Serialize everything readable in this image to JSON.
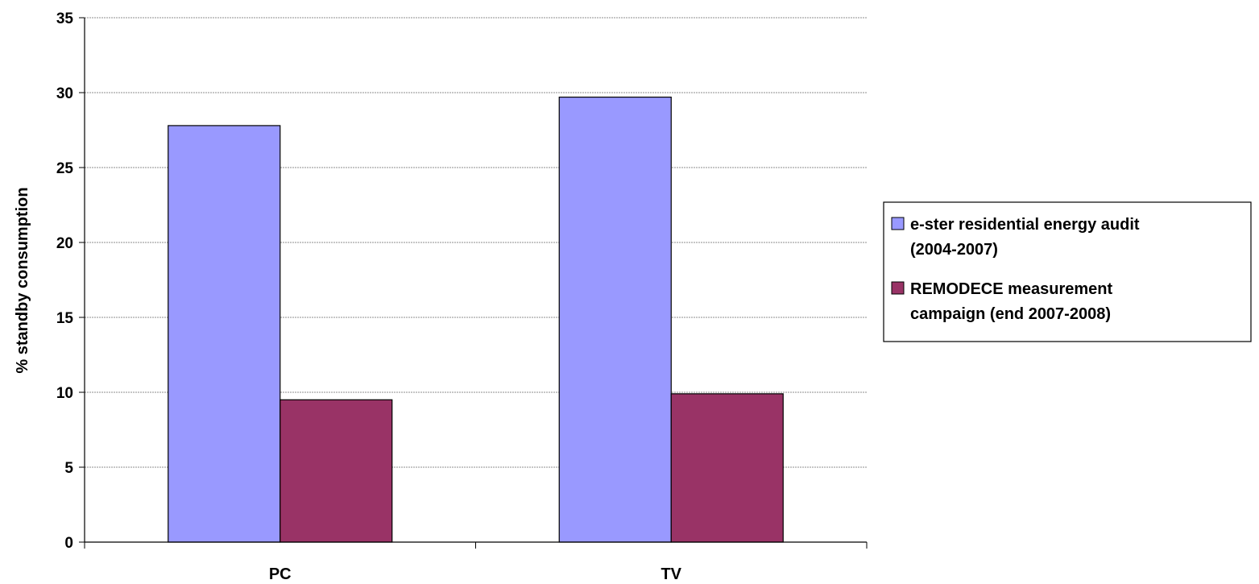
{
  "chart_data": {
    "type": "bar",
    "categories": [
      "PC",
      "TV"
    ],
    "series": [
      {
        "name": "e-ster residential energy audit (2004-2007)",
        "legend_lines": [
          "e-ster residential energy audit",
          "(2004-2007)"
        ],
        "values": [
          27.8,
          29.7
        ],
        "color": "#9999ff"
      },
      {
        "name": "REMODECE measurement campaign (end 2007-2008)",
        "legend_lines": [
          "REMODECE measurement",
          "campaign (end 2007-2008)"
        ],
        "values": [
          9.5,
          9.9
        ],
        "color": "#993366"
      }
    ],
    "title": "",
    "xlabel": "",
    "ylabel": "% standby consumption",
    "ylim": [
      0,
      35
    ],
    "yticks": [
      "0",
      "5",
      "10",
      "15",
      "20",
      "25",
      "30",
      "35"
    ],
    "grid": true,
    "legend_position": "right"
  }
}
